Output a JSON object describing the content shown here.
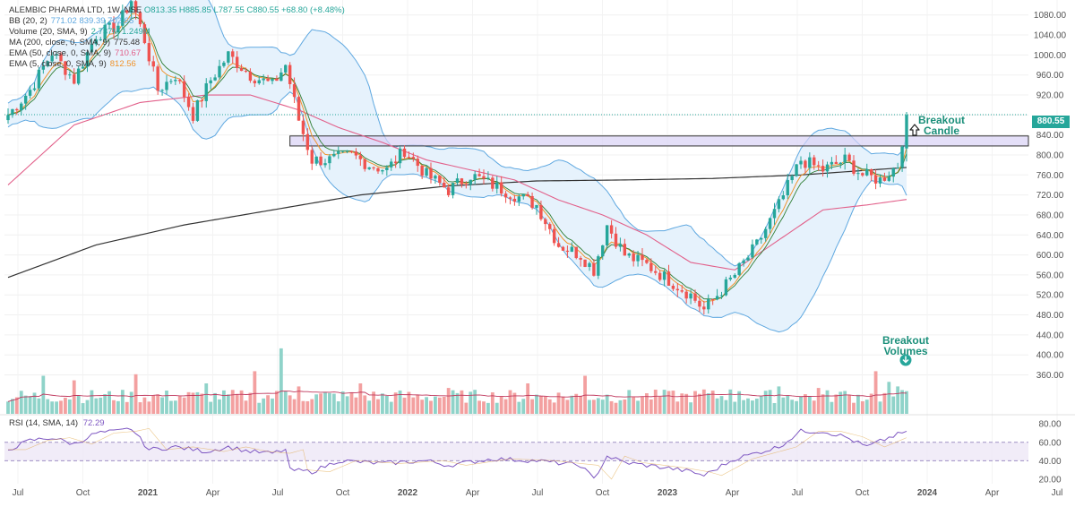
{
  "legend": {
    "title": "ALEMBIC PHARMA LTD, 1W, NSE",
    "ohlc": "O813.35 H885.85 L787.55 C880.55 +68.80 (+8.48%)",
    "rows": [
      {
        "name": "BB (20, 2)",
        "values": "771.02  839.39  702.65"
      },
      {
        "name": "Volume (20, SMA, 9)",
        "values": "2.737M  1.249M"
      },
      {
        "name": "MA (200, close, 0, SMA, 9)",
        "values": "775.48"
      },
      {
        "name": "EMA (50, close, 0, SMA, 9)",
        "values": "710.67"
      },
      {
        "name": "EMA (5, close, 0, SMA, 9)",
        "values": "812.56"
      }
    ]
  },
  "rsi_legend": {
    "name": "RSI (14, SMA, 14)",
    "value": "72.29"
  },
  "annotations": {
    "breakout_candle": [
      "Breakout",
      "Candle"
    ],
    "breakout_volumes": [
      "Breakout",
      "Volumes"
    ]
  },
  "last_price": "880.55",
  "colors": {
    "up": "#26a69a",
    "down": "#ef5350",
    "upvol": "#8fd3c9",
    "downvol": "#f3a0a0",
    "bb": "#5fa8e0",
    "bbfill": "#e6f2fc",
    "ma200": "#333333",
    "ema50": "#e2608a",
    "ema5": "#f0932b",
    "rsi": "#7e57c2",
    "zone": "#d9d2f5"
  },
  "chart_data": {
    "type": "candlestick",
    "symbol": "ALEMBIC PHARMA LTD",
    "interval": "1W",
    "y_ticks": [
      480,
      520,
      560,
      600,
      640,
      680,
      720,
      760,
      800,
      840,
      880,
      920,
      960,
      1000,
      1040,
      1080
    ],
    "y_ticks_low": [
      360,
      400,
      440
    ],
    "rsi_ticks": [
      20,
      40,
      60,
      80
    ],
    "ylim": [
      300,
      1110
    ],
    "rsi_ylim": [
      15,
      88
    ],
    "x_labels": [
      "Jul",
      "Oct",
      "2021",
      "Apr",
      "Jul",
      "Oct",
      "2022",
      "Apr",
      "Jul",
      "Oct",
      "2023",
      "Apr",
      "Jul",
      "Oct",
      "2024",
      "Apr",
      "Jul"
    ],
    "breakout_zone": [
      818,
      838
    ],
    "close_anchors": [
      [
        0,
        880
      ],
      [
        5,
        930
      ],
      [
        10,
        1005
      ],
      [
        15,
        950
      ],
      [
        20,
        1040
      ],
      [
        25,
        1060
      ],
      [
        28,
        1110
      ],
      [
        31,
        1030
      ],
      [
        34,
        930
      ],
      [
        38,
        960
      ],
      [
        42,
        880
      ],
      [
        46,
        950
      ],
      [
        50,
        1000
      ],
      [
        55,
        960
      ],
      [
        60,
        940
      ],
      [
        63,
        980
      ],
      [
        66,
        870
      ],
      [
        69,
        790
      ],
      [
        73,
        790
      ],
      [
        78,
        800
      ],
      [
        82,
        780
      ],
      [
        86,
        770
      ],
      [
        90,
        810
      ],
      [
        95,
        760
      ],
      [
        100,
        730
      ],
      [
        105,
        760
      ],
      [
        110,
        740
      ],
      [
        115,
        720
      ],
      [
        120,
        700
      ],
      [
        125,
        620
      ],
      [
        130,
        600
      ],
      [
        133,
        570
      ],
      [
        136,
        660
      ],
      [
        140,
        600
      ],
      [
        145,
        580
      ],
      [
        150,
        550
      ],
      [
        155,
        520
      ],
      [
        158,
        490
      ],
      [
        161,
        520
      ],
      [
        165,
        560
      ],
      [
        170,
        620
      ],
      [
        175,
        700
      ],
      [
        180,
        790
      ],
      [
        185,
        770
      ],
      [
        190,
        790
      ],
      [
        194,
        760
      ],
      [
        198,
        750
      ],
      [
        202,
        780
      ],
      [
        204,
        880
      ]
    ],
    "ma200": [
      [
        0,
        555
      ],
      [
        20,
        620
      ],
      [
        40,
        660
      ],
      [
        60,
        690
      ],
      [
        80,
        720
      ],
      [
        100,
        738
      ],
      [
        120,
        748
      ],
      [
        140,
        750
      ],
      [
        160,
        753
      ],
      [
        180,
        760
      ],
      [
        204,
        775
      ]
    ],
    "ema50": [
      [
        0,
        740
      ],
      [
        15,
        860
      ],
      [
        30,
        905
      ],
      [
        45,
        920
      ],
      [
        55,
        920
      ],
      [
        66,
        890
      ],
      [
        75,
        855
      ],
      [
        85,
        825
      ],
      [
        95,
        790
      ],
      [
        105,
        770
      ],
      [
        115,
        750
      ],
      [
        125,
        710
      ],
      [
        135,
        680
      ],
      [
        145,
        640
      ],
      [
        155,
        585
      ],
      [
        165,
        570
      ],
      [
        175,
        630
      ],
      [
        185,
        690
      ],
      [
        195,
        700
      ],
      [
        204,
        711
      ]
    ],
    "rsi": [
      [
        0,
        52
      ],
      [
        5,
        62
      ],
      [
        10,
        65
      ],
      [
        15,
        58
      ],
      [
        20,
        70
      ],
      [
        25,
        72
      ],
      [
        28,
        75
      ],
      [
        32,
        52
      ],
      [
        38,
        55
      ],
      [
        45,
        50
      ],
      [
        50,
        55
      ],
      [
        55,
        50
      ],
      [
        60,
        48
      ],
      [
        63,
        52
      ],
      [
        64,
        30
      ],
      [
        69,
        28
      ],
      [
        75,
        40
      ],
      [
        85,
        37
      ],
      [
        95,
        40
      ],
      [
        100,
        35
      ],
      [
        110,
        42
      ],
      [
        120,
        40
      ],
      [
        130,
        35
      ],
      [
        133,
        20
      ],
      [
        136,
        45
      ],
      [
        140,
        38
      ],
      [
        150,
        32
      ],
      [
        155,
        28
      ],
      [
        158,
        24
      ],
      [
        165,
        42
      ],
      [
        175,
        55
      ],
      [
        180,
        72
      ],
      [
        185,
        72
      ],
      [
        190,
        66
      ],
      [
        195,
        55
      ],
      [
        200,
        65
      ],
      [
        204,
        72
      ]
    ],
    "volume_spikes": [
      [
        8,
        2.5
      ],
      [
        15,
        2.2
      ],
      [
        29,
        2.6
      ],
      [
        45,
        2.0
      ],
      [
        56,
        2.8
      ],
      [
        61,
        1.5
      ],
      [
        62,
        4.3
      ],
      [
        66,
        1.8
      ],
      [
        80,
        2.0
      ],
      [
        100,
        1.7
      ],
      [
        118,
        2.0
      ],
      [
        131,
        2.5
      ],
      [
        150,
        1.5
      ],
      [
        158,
        1.6
      ],
      [
        164,
        1.6
      ],
      [
        175,
        1.8
      ],
      [
        184,
        1.7
      ],
      [
        190,
        1.5
      ],
      [
        197,
        2.8
      ],
      [
        200,
        2.1
      ],
      [
        202,
        1.8
      ]
    ]
  }
}
